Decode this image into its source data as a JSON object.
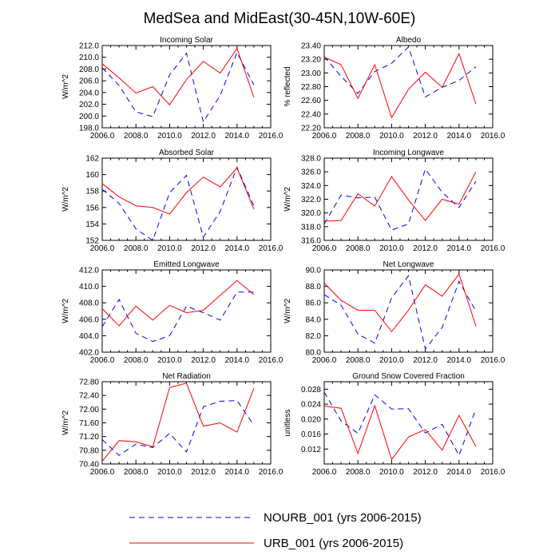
{
  "title": "MedSea and MidEast(30-45N,10W-60E)",
  "series_styles": {
    "NOURB": {
      "color": "#0000ff",
      "dash": "dashed"
    },
    "URB": {
      "color": "#ff0000",
      "dash": "solid"
    }
  },
  "legend": [
    {
      "key": "NOURB",
      "label": "NOURB_001 (yrs 2006-2015)"
    },
    {
      "key": "URB",
      "label": "URB_001 (yrs 2006-2015)"
    }
  ],
  "chart_data": [
    {
      "type": "line",
      "title": "Incoming Solar",
      "ylabel": "W/m^2",
      "xlim": [
        2006,
        2016
      ],
      "ylim": [
        198,
        212
      ],
      "xticks": [
        2006,
        2008,
        2010,
        2012,
        2014,
        2016
      ],
      "xtick_labels": [
        "2006.0",
        "2008.0",
        "2010.0",
        "2012.0",
        "2014.0",
        "2016.0"
      ],
      "yticks": [
        198,
        200,
        202,
        204,
        206,
        208,
        210,
        212
      ],
      "ytick_labels": [
        "198.0",
        "200.0",
        "202.0",
        "204.0",
        "206.0",
        "208.0",
        "210.0",
        "212.0"
      ],
      "x": [
        2006,
        2007,
        2008,
        2009,
        2010,
        2011,
        2012,
        2013,
        2014,
        2015
      ],
      "series": [
        {
          "name": "NOURB",
          "values": [
            208.2,
            205.2,
            200.7,
            199.9,
            207.0,
            210.7,
            199.0,
            203.5,
            210.8,
            205.3
          ]
        },
        {
          "name": "URB",
          "values": [
            208.9,
            206.5,
            203.9,
            205.0,
            201.9,
            206.2,
            209.3,
            207.3,
            211.5,
            203.2
          ]
        }
      ]
    },
    {
      "type": "line",
      "title": "Albedo",
      "ylabel": "% reflected",
      "xlim": [
        2006,
        2016
      ],
      "ylim": [
        22.2,
        23.4
      ],
      "xticks": [
        2006,
        2008,
        2010,
        2012,
        2014,
        2016
      ],
      "xtick_labels": [
        "2006.0",
        "2008.0",
        "2010.0",
        "2012.0",
        "2014.0",
        "2016.0"
      ],
      "yticks": [
        22.2,
        22.4,
        22.6,
        22.8,
        23.0,
        23.2,
        23.4
      ],
      "ytick_labels": [
        "22.20",
        "22.40",
        "22.60",
        "22.80",
        "23.00",
        "23.20",
        "23.40"
      ],
      "x": [
        2006,
        2007,
        2008,
        2009,
        2010,
        2011,
        2012,
        2013,
        2014,
        2015
      ],
      "series": [
        {
          "name": "NOURB",
          "values": [
            23.24,
            22.95,
            22.7,
            23.02,
            23.14,
            23.38,
            22.65,
            22.79,
            22.89,
            23.09
          ]
        },
        {
          "name": "URB",
          "values": [
            23.23,
            23.12,
            22.63,
            23.12,
            22.35,
            22.76,
            23.01,
            22.79,
            23.28,
            22.55
          ]
        }
      ]
    },
    {
      "type": "line",
      "title": "Absorbed Solar",
      "ylabel": "W/m^2",
      "xlim": [
        2006,
        2016
      ],
      "ylim": [
        152,
        162
      ],
      "xticks": [
        2006,
        2008,
        2010,
        2012,
        2014,
        2016
      ],
      "xtick_labels": [
        "2006.0",
        "2008.0",
        "2010.0",
        "2012.0",
        "2014.0",
        "2016.0"
      ],
      "yticks": [
        152,
        154,
        156,
        158,
        160,
        162
      ],
      "ytick_labels": [
        "152",
        "154",
        "156",
        "158",
        "160",
        "162"
      ],
      "x": [
        2006,
        2007,
        2008,
        2009,
        2010,
        2011,
        2012,
        2013,
        2014,
        2015
      ],
      "series": [
        {
          "name": "NOURB",
          "values": [
            158.2,
            156.5,
            153.4,
            152.0,
            157.8,
            159.9,
            152.4,
            155.5,
            160.9,
            156.2
          ]
        },
        {
          "name": "URB",
          "values": [
            158.9,
            157.3,
            156.2,
            156.0,
            155.2,
            157.8,
            159.7,
            158.5,
            160.8,
            155.8
          ]
        }
      ]
    },
    {
      "type": "line",
      "title": "Incoming Longwave",
      "ylabel": "W/m^2",
      "xlim": [
        2006,
        2016
      ],
      "ylim": [
        316,
        328
      ],
      "xticks": [
        2006,
        2008,
        2010,
        2012,
        2014,
        2016
      ],
      "xtick_labels": [
        "2006.0",
        "2008.0",
        "2010.0",
        "2012.0",
        "2014.0",
        "2016.0"
      ],
      "yticks": [
        316,
        318,
        320,
        322,
        324,
        326,
        328
      ],
      "ytick_labels": [
        "316.0",
        "318.0",
        "320.0",
        "322.0",
        "324.0",
        "326.0",
        "328.0"
      ],
      "x": [
        2006,
        2007,
        2008,
        2009,
        2010,
        2011,
        2012,
        2013,
        2014,
        2015
      ],
      "series": [
        {
          "name": "NOURB",
          "values": [
            318.4,
            322.6,
            322.2,
            322.3,
            317.5,
            318.4,
            326.4,
            323.0,
            320.8,
            324.6
          ]
        },
        {
          "name": "URB",
          "values": [
            318.8,
            318.9,
            322.8,
            321.0,
            325.3,
            321.9,
            318.9,
            322.0,
            321.3,
            326.0
          ]
        }
      ]
    },
    {
      "type": "line",
      "title": "Emitted Longwave",
      "ylabel": "W/m^2",
      "xlim": [
        2006,
        2016
      ],
      "ylim": [
        402,
        412
      ],
      "xticks": [
        2006,
        2008,
        2010,
        2012,
        2014,
        2016
      ],
      "xtick_labels": [
        "2006.0",
        "2008.0",
        "2010.0",
        "2012.0",
        "2014.0",
        "2016.0"
      ],
      "yticks": [
        402,
        404,
        406,
        408,
        410,
        412
      ],
      "ytick_labels": [
        "402.0",
        "404.0",
        "406.0",
        "408.0",
        "410.0",
        "412.0"
      ],
      "x": [
        2006,
        2007,
        2008,
        2009,
        2010,
        2011,
        2012,
        2013,
        2014,
        2015
      ],
      "series": [
        {
          "name": "NOURB",
          "values": [
            405.1,
            408.4,
            404.3,
            403.3,
            404.0,
            407.6,
            406.8,
            405.9,
            409.3,
            409.3
          ]
        },
        {
          "name": "URB",
          "values": [
            407.3,
            405.2,
            407.6,
            405.9,
            407.7,
            406.8,
            407.1,
            408.9,
            410.7,
            409.0
          ]
        }
      ]
    },
    {
      "type": "line",
      "title": "Net Longwave",
      "ylabel": "W/m^2",
      "xlim": [
        2006,
        2016
      ],
      "ylim": [
        80,
        90
      ],
      "xticks": [
        2006,
        2008,
        2010,
        2012,
        2014,
        2016
      ],
      "xtick_labels": [
        "2006.0",
        "2008.0",
        "2010.0",
        "2012.0",
        "2014.0",
        "2016.0"
      ],
      "yticks": [
        80,
        82,
        84,
        86,
        88,
        90
      ],
      "ytick_labels": [
        "80.0",
        "82.0",
        "84.0",
        "86.0",
        "88.0",
        "90.0"
      ],
      "x": [
        2006,
        2007,
        2008,
        2009,
        2010,
        2011,
        2012,
        2013,
        2014,
        2015
      ],
      "series": [
        {
          "name": "NOURB",
          "values": [
            87.0,
            85.7,
            82.2,
            81.1,
            86.6,
            89.3,
            80.4,
            83.0,
            88.6,
            85.0
          ]
        },
        {
          "name": "URB",
          "values": [
            88.4,
            86.3,
            85.1,
            85.1,
            82.5,
            85.1,
            88.2,
            86.8,
            89.5,
            83.2
          ]
        }
      ]
    },
    {
      "type": "line",
      "title": "Net Radiation",
      "ylabel": "W/m^2",
      "xlim": [
        2006,
        2016
      ],
      "ylim": [
        70.4,
        72.8
      ],
      "xticks": [
        2006,
        2008,
        2010,
        2012,
        2014,
        2016
      ],
      "xtick_labels": [
        "2006.0",
        "2008.0",
        "2010.0",
        "2012.0",
        "2014.0",
        "2016.0"
      ],
      "yticks": [
        70.4,
        70.8,
        71.2,
        71.6,
        72.0,
        72.4,
        72.8
      ],
      "ytick_labels": [
        "70.40",
        "70.80",
        "71.20",
        "71.60",
        "72.00",
        "72.40",
        "72.80"
      ],
      "x": [
        2006,
        2007,
        2008,
        2009,
        2010,
        2011,
        2012,
        2013,
        2014,
        2015
      ],
      "series": [
        {
          "name": "NOURB",
          "values": [
            71.11,
            70.65,
            70.98,
            70.88,
            71.29,
            70.75,
            72.07,
            72.23,
            72.25,
            71.53
          ]
        },
        {
          "name": "URB",
          "values": [
            70.48,
            71.08,
            71.05,
            70.9,
            72.63,
            72.76,
            71.5,
            71.6,
            71.33,
            72.61
          ]
        }
      ]
    },
    {
      "type": "line",
      "title": "Ground Snow Covered Fraction",
      "ylabel": "unitless",
      "xlim": [
        2006,
        2016
      ],
      "ylim": [
        0.008,
        0.03
      ],
      "xticks": [
        2006,
        2008,
        2010,
        2012,
        2014,
        2016
      ],
      "xtick_labels": [
        "2006.0",
        "2008.0",
        "2010.0",
        "2012.0",
        "2014.0",
        "2016.0"
      ],
      "yticks": [
        0.012,
        0.016,
        0.02,
        0.024,
        0.028
      ],
      "ytick_labels": [
        "0.012",
        "0.016",
        "0.020",
        "0.024",
        "0.028"
      ],
      "x": [
        2006,
        2007,
        2008,
        2009,
        2010,
        2011,
        2012,
        2013,
        2014,
        2015
      ],
      "series": [
        {
          "name": "NOURB",
          "values": [
            0.0272,
            0.0195,
            0.0162,
            0.0265,
            0.0227,
            0.0228,
            0.0163,
            0.0186,
            0.0103,
            0.0227
          ]
        },
        {
          "name": "URB",
          "values": [
            0.0235,
            0.0229,
            0.0108,
            0.0236,
            0.0092,
            0.0152,
            0.0172,
            0.0117,
            0.021,
            0.0127
          ]
        }
      ]
    }
  ]
}
